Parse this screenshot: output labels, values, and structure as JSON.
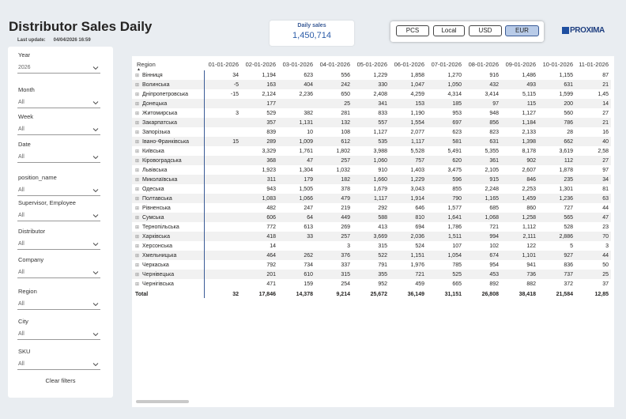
{
  "header": {
    "title": "Distributor Sales Daily",
    "last_update_label": "Last update:",
    "last_update_value": "04/04/2026 16:59"
  },
  "kpi": {
    "label": "Daily sales",
    "value": "1,450,714"
  },
  "currency_buttons": [
    {
      "label": "PCS",
      "active": false
    },
    {
      "label": "Local",
      "active": false
    },
    {
      "label": "USD",
      "active": false
    },
    {
      "label": "EUR",
      "active": true
    }
  ],
  "logo": {
    "text": "PROXIMA"
  },
  "filters": [
    {
      "label": "Year",
      "value": "2026"
    },
    {
      "label": "Month",
      "value": "All"
    },
    {
      "label": "Week",
      "value": "All"
    },
    {
      "label": "Date",
      "value": "All"
    },
    {
      "label": "position_name",
      "value": "All"
    },
    {
      "label": "Supervisor, Employee",
      "value": "All"
    },
    {
      "label": "Distributor",
      "value": "All"
    },
    {
      "label": "Company",
      "value": "All"
    },
    {
      "label": "Region",
      "value": "All"
    },
    {
      "label": "City",
      "value": "All"
    },
    {
      "label": "SKU",
      "value": "All"
    }
  ],
  "clear_filters_label": "Clear filters",
  "table": {
    "row_header": "Region",
    "columns": [
      "01-01-2026",
      "02-01-2026",
      "03-01-2026",
      "04-01-2026",
      "05-01-2026",
      "06-01-2026",
      "07-01-2026",
      "08-01-2026",
      "09-01-2026",
      "10-01-2026",
      "11-01-2026"
    ],
    "rows": [
      {
        "region": "Вінниця",
        "values": [
          "34",
          "1,194",
          "623",
          "556",
          "1,229",
          "1,858",
          "1,270",
          "916",
          "1,486",
          "1,155",
          "87"
        ]
      },
      {
        "region": "Волинська",
        "values": [
          "-5",
          "163",
          "404",
          "242",
          "330",
          "1,047",
          "1,050",
          "432",
          "493",
          "631",
          "21"
        ]
      },
      {
        "region": "Дніпропетровська",
        "values": [
          "-15",
          "2,124",
          "2,236",
          "650",
          "2,408",
          "4,259",
          "4,314",
          "3,414",
          "5,115",
          "1,599",
          "1,45"
        ]
      },
      {
        "region": "Донецька",
        "values": [
          "",
          "177",
          "",
          "25",
          "341",
          "153",
          "185",
          "97",
          "115",
          "200",
          "14"
        ]
      },
      {
        "region": "Житомирська",
        "values": [
          "3",
          "529",
          "382",
          "281",
          "833",
          "1,190",
          "953",
          "948",
          "1,127",
          "560",
          "27"
        ]
      },
      {
        "region": "Закарпатська",
        "values": [
          "",
          "357",
          "1,131",
          "132",
          "557",
          "1,554",
          "697",
          "856",
          "1,184",
          "786",
          "21"
        ]
      },
      {
        "region": "Запорізька",
        "values": [
          "",
          "839",
          "10",
          "108",
          "1,127",
          "2,077",
          "623",
          "823",
          "2,133",
          "28",
          "16"
        ]
      },
      {
        "region": "Івано-Франківська",
        "values": [
          "15",
          "289",
          "1,009",
          "612",
          "535",
          "1,117",
          "581",
          "631",
          "1,398",
          "662",
          "40"
        ]
      },
      {
        "region": "Київська",
        "values": [
          "",
          "3,329",
          "1,761",
          "1,802",
          "3,988",
          "5,528",
          "5,491",
          "5,355",
          "8,178",
          "3,619",
          "2,58"
        ]
      },
      {
        "region": "Кіровоградська",
        "values": [
          "",
          "368",
          "47",
          "257",
          "1,060",
          "757",
          "620",
          "361",
          "902",
          "112",
          "27"
        ]
      },
      {
        "region": "Львівська",
        "values": [
          "",
          "1,923",
          "1,304",
          "1,032",
          "910",
          "1,403",
          "3,475",
          "2,105",
          "2,607",
          "1,878",
          "97"
        ]
      },
      {
        "region": "Миколаївська",
        "values": [
          "",
          "311",
          "179",
          "182",
          "1,660",
          "1,229",
          "596",
          "915",
          "846",
          "235",
          "34"
        ]
      },
      {
        "region": "Одеська",
        "values": [
          "",
          "943",
          "1,505",
          "378",
          "1,679",
          "3,043",
          "855",
          "2,248",
          "2,253",
          "1,301",
          "81"
        ]
      },
      {
        "region": "Полтавська",
        "values": [
          "",
          "1,083",
          "1,066",
          "479",
          "1,117",
          "1,914",
          "790",
          "1,165",
          "1,459",
          "1,236",
          "63"
        ]
      },
      {
        "region": "Рівненська",
        "values": [
          "",
          "482",
          "247",
          "219",
          "292",
          "646",
          "1,577",
          "685",
          "860",
          "727",
          "44"
        ]
      },
      {
        "region": "Сумська",
        "values": [
          "",
          "606",
          "64",
          "449",
          "588",
          "810",
          "1,641",
          "1,068",
          "1,258",
          "565",
          "47"
        ]
      },
      {
        "region": "Тернопільська",
        "values": [
          "",
          "772",
          "613",
          "269",
          "413",
          "694",
          "1,786",
          "721",
          "1,112",
          "528",
          "23"
        ]
      },
      {
        "region": "Харківська",
        "values": [
          "",
          "418",
          "33",
          "257",
          "3,669",
          "2,036",
          "1,511",
          "994",
          "2,111",
          "2,886",
          "70"
        ]
      },
      {
        "region": "Херсонська",
        "values": [
          "",
          "14",
          "",
          "3",
          "315",
          "524",
          "107",
          "102",
          "122",
          "5",
          "3"
        ]
      },
      {
        "region": "Хмельницька",
        "values": [
          "",
          "464",
          "262",
          "376",
          "522",
          "1,151",
          "1,054",
          "674",
          "1,101",
          "927",
          "44"
        ]
      },
      {
        "region": "Черкаська",
        "values": [
          "",
          "792",
          "734",
          "337",
          "791",
          "1,976",
          "785",
          "954",
          "941",
          "836",
          "50"
        ]
      },
      {
        "region": "Чернівецька",
        "values": [
          "",
          "201",
          "610",
          "315",
          "355",
          "721",
          "525",
          "453",
          "736",
          "737",
          "25"
        ]
      },
      {
        "region": "Чернігівська",
        "values": [
          "",
          "471",
          "159",
          "254",
          "952",
          "459",
          "665",
          "892",
          "882",
          "372",
          "37"
        ]
      }
    ],
    "total": {
      "label": "Total",
      "values": [
        "32",
        "17,846",
        "14,378",
        "9,214",
        "25,672",
        "36,149",
        "31,151",
        "26,808",
        "38,418",
        "21,584",
        "12,85"
      ]
    }
  }
}
